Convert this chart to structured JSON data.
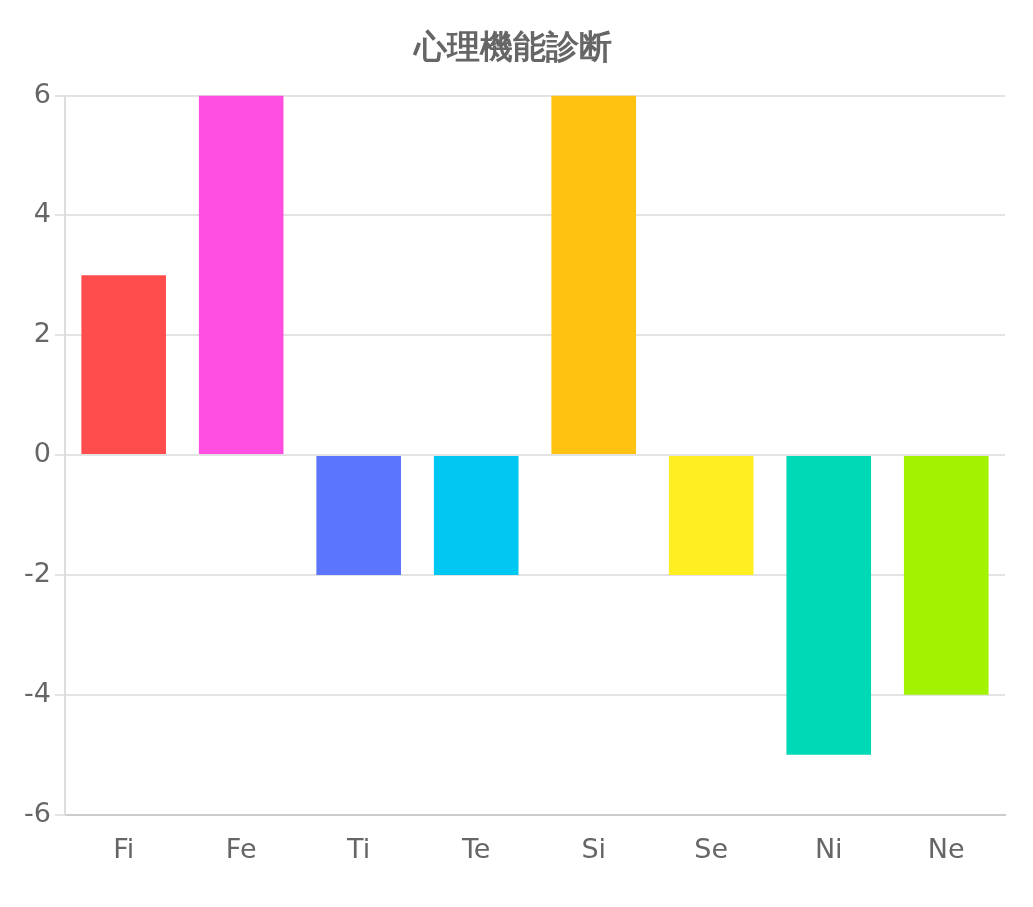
{
  "chart_data": {
    "type": "bar",
    "title": "心理機能診断",
    "categories": [
      "Fi",
      "Fe",
      "Ti",
      "Te",
      "Si",
      "Se",
      "Ni",
      "Ne"
    ],
    "values": [
      3,
      6,
      -2,
      -2,
      6,
      -2,
      -5,
      -4
    ],
    "colors": [
      "#ff4d4d",
      "#ff4fe3",
      "#5b75ff",
      "#00c8f2",
      "#ffc210",
      "#ffee22",
      "#00d9b6",
      "#a3f200"
    ],
    "ylim": [
      -6,
      6
    ],
    "yticks": [
      -6,
      -4,
      -2,
      0,
      2,
      4,
      6
    ],
    "grid": "y",
    "legend": false
  }
}
